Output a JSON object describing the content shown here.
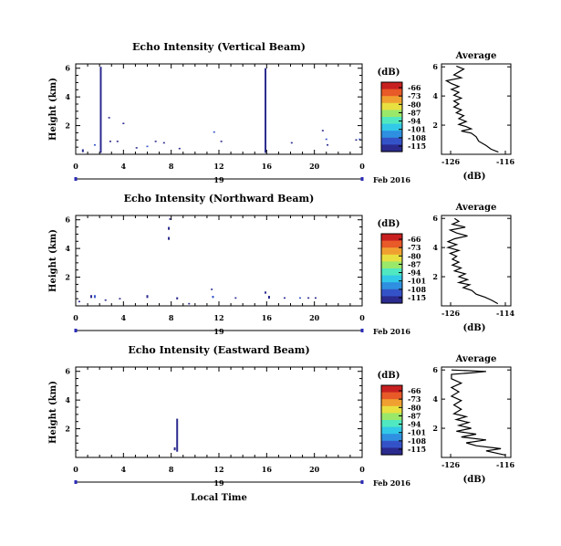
{
  "colormap": [
    "#2b2b8f",
    "#3553c8",
    "#2f8fe0",
    "#32c8e8",
    "#50e8c0",
    "#9ae86a",
    "#e8e040",
    "#f0a030",
    "#e85a28",
    "#c82020"
  ],
  "chart_data": [
    {
      "type": "heatmap",
      "title": "Echo Intensity (Vertical Beam)",
      "ylabel": "Height (km)",
      "y_ticks": [
        2,
        4,
        6
      ],
      "x_ticks": [
        "0",
        "4",
        "8",
        "12",
        "16",
        "20",
        "0"
      ],
      "xlim": [
        0,
        24
      ],
      "ylim": [
        0,
        6.3
      ],
      "date_axis": {
        "day": "19",
        "month_year": "Feb 2016"
      },
      "colorbar": {
        "unit": "(dB)",
        "ticks": [
          "-66",
          "-73",
          "-80",
          "-87",
          "-94",
          "-101",
          "-108",
          "-115"
        ],
        "range": [
          -115,
          -66
        ]
      },
      "echoes": [
        {
          "t": 2.1,
          "h0": 0.1,
          "h1": 6.1,
          "v": -112
        },
        {
          "t": 15.9,
          "h0": 0.1,
          "h1": 6.0,
          "v": -112
        },
        {
          "t": 0.6,
          "h0": 0.15,
          "h1": 0.35,
          "v": -111
        },
        {
          "t": 1.6,
          "h0": 0.6,
          "h1": 0.7,
          "v": -110
        },
        {
          "t": 2.8,
          "h0": 2.5,
          "h1": 2.6,
          "v": -112
        },
        {
          "t": 2.9,
          "h0": 0.85,
          "h1": 0.95,
          "v": -111
        },
        {
          "t": 3.5,
          "h0": 0.85,
          "h1": 0.95,
          "v": -111
        },
        {
          "t": 4.0,
          "h0": 2.1,
          "h1": 2.2,
          "v": -111
        },
        {
          "t": 5.1,
          "h0": 0.4,
          "h1": 0.5,
          "v": -112
        },
        {
          "t": 6.0,
          "h0": 0.5,
          "h1": 0.6,
          "v": -110
        },
        {
          "t": 6.7,
          "h0": 0.85,
          "h1": 0.95,
          "v": -111
        },
        {
          "t": 7.4,
          "h0": 0.75,
          "h1": 0.85,
          "v": -111
        },
        {
          "t": 8.7,
          "h0": 0.35,
          "h1": 0.45,
          "v": -112
        },
        {
          "t": 11.6,
          "h0": 1.5,
          "h1": 1.6,
          "v": -110
        },
        {
          "t": 12.2,
          "h0": 0.85,
          "h1": 0.95,
          "v": -111
        },
        {
          "t": 18.1,
          "h0": 0.75,
          "h1": 0.85,
          "v": -111
        },
        {
          "t": 20.7,
          "h0": 1.6,
          "h1": 1.7,
          "v": -111
        },
        {
          "t": 21.0,
          "h0": 1.0,
          "h1": 1.1,
          "v": -110
        },
        {
          "t": 21.1,
          "h0": 0.6,
          "h1": 0.7,
          "v": -111
        },
        {
          "t": 23.5,
          "h0": 0.95,
          "h1": 1.05,
          "v": -111
        },
        {
          "t": 23.8,
          "h0": 1.0,
          "h1": 1.1,
          "v": -110
        }
      ],
      "average": {
        "title": "Average",
        "xlabel": "(dB)",
        "x_ticks": [
          "-126",
          "-116"
        ],
        "xlim": [
          -128,
          -114
        ],
        "y_ticks": [
          2,
          4,
          6
        ],
        "ylim": [
          0,
          6.2
        ],
        "profile": [
          [
            -116.5,
            0.15
          ],
          [
            -118,
            0.35
          ],
          [
            -119,
            0.6
          ],
          [
            -120.5,
            0.9
          ],
          [
            -121,
            1.2
          ],
          [
            -122,
            1.45
          ],
          [
            -124,
            1.6
          ],
          [
            -122,
            1.75
          ],
          [
            -123,
            1.9
          ],
          [
            -124.5,
            2.05
          ],
          [
            -123,
            2.25
          ],
          [
            -124.5,
            2.45
          ],
          [
            -123.5,
            2.65
          ],
          [
            -125,
            2.85
          ],
          [
            -124,
            3.05
          ],
          [
            -125.5,
            3.25
          ],
          [
            -124.5,
            3.45
          ],
          [
            -125.5,
            3.65
          ],
          [
            -124,
            3.85
          ],
          [
            -125.5,
            4.05
          ],
          [
            -124.5,
            4.25
          ],
          [
            -126,
            4.45
          ],
          [
            -124.5,
            4.65
          ],
          [
            -126,
            4.85
          ],
          [
            -127,
            5.05
          ],
          [
            -124,
            5.25
          ],
          [
            -125.5,
            5.45
          ],
          [
            -124.5,
            5.65
          ],
          [
            -123.5,
            5.85
          ],
          [
            -125,
            6.05
          ]
        ]
      }
    },
    {
      "type": "heatmap",
      "title": "Echo Intensity (Northward Beam)",
      "ylabel": "Height (km)",
      "y_ticks": [
        2,
        4,
        6
      ],
      "x_ticks": [
        "0",
        "4",
        "8",
        "12",
        "16",
        "20",
        "0"
      ],
      "xlim": [
        0,
        24
      ],
      "ylim": [
        0,
        6.3
      ],
      "date_axis": {
        "day": "19",
        "month_year": "Feb 2016"
      },
      "colorbar": {
        "unit": "(dB)",
        "ticks": [
          "-66",
          "-73",
          "-80",
          "-87",
          "-94",
          "-101",
          "-108",
          "-115"
        ],
        "range": [
          -115,
          -66
        ]
      },
      "echoes": [
        {
          "t": 0.3,
          "h0": 0.25,
          "h1": 0.35,
          "v": -112
        },
        {
          "t": 1.3,
          "h0": 0.55,
          "h1": 0.75,
          "v": -111
        },
        {
          "t": 1.6,
          "h0": 0.55,
          "h1": 0.75,
          "v": -110
        },
        {
          "t": 2.5,
          "h0": 0.35,
          "h1": 0.45,
          "v": -112
        },
        {
          "t": 3.7,
          "h0": 0.45,
          "h1": 0.55,
          "v": -111
        },
        {
          "t": 6.0,
          "h0": 0.55,
          "h1": 0.75,
          "v": -111
        },
        {
          "t": 7.9,
          "h0": 6.0,
          "h1": 6.1,
          "v": -111
        },
        {
          "t": 7.8,
          "h0": 5.3,
          "h1": 5.5,
          "v": -112
        },
        {
          "t": 7.8,
          "h0": 4.6,
          "h1": 4.8,
          "v": -112
        },
        {
          "t": 8.5,
          "h0": 0.45,
          "h1": 0.6,
          "v": -111
        },
        {
          "t": 9.5,
          "h0": 0.1,
          "h1": 0.2,
          "v": -112
        },
        {
          "t": 11.4,
          "h0": 1.1,
          "h1": 1.2,
          "v": -111
        },
        {
          "t": 11.5,
          "h0": 0.55,
          "h1": 0.7,
          "v": -110
        },
        {
          "t": 13.4,
          "h0": 0.5,
          "h1": 0.6,
          "v": -111
        },
        {
          "t": 15.9,
          "h0": 0.85,
          "h1": 1.0,
          "v": -111
        },
        {
          "t": 16.2,
          "h0": 0.5,
          "h1": 0.7,
          "v": -112
        },
        {
          "t": 17.5,
          "h0": 0.5,
          "h1": 0.6,
          "v": -111
        },
        {
          "t": 18.8,
          "h0": 0.5,
          "h1": 0.6,
          "v": -110
        },
        {
          "t": 19.5,
          "h0": 0.5,
          "h1": 0.6,
          "v": -111
        },
        {
          "t": 20.1,
          "h0": 0.5,
          "h1": 0.6,
          "v": -112
        }
      ],
      "average": {
        "title": "Average",
        "xlabel": "(dB)",
        "x_ticks": [
          "-126",
          "-114"
        ],
        "xlim": [
          -128,
          -112
        ],
        "y_ticks": [
          2,
          4,
          6
        ],
        "ylim": [
          0,
          6.2
        ],
        "profile": [
          [
            -115,
            0.15
          ],
          [
            -116.5,
            0.4
          ],
          [
            -118,
            0.6
          ],
          [
            -120,
            0.8
          ],
          [
            -121,
            1.05
          ],
          [
            -123,
            1.25
          ],
          [
            -121.5,
            1.45
          ],
          [
            -124,
            1.6
          ],
          [
            -122,
            1.8
          ],
          [
            -124,
            2.0
          ],
          [
            -122.5,
            2.2
          ],
          [
            -125,
            2.4
          ],
          [
            -123.5,
            2.6
          ],
          [
            -125.5,
            2.8
          ],
          [
            -124,
            3.0
          ],
          [
            -125.5,
            3.2
          ],
          [
            -124.5,
            3.4
          ],
          [
            -126,
            3.6
          ],
          [
            -124,
            3.8
          ],
          [
            -126.5,
            4.0
          ],
          [
            -124.5,
            4.2
          ],
          [
            -126.5,
            4.4
          ],
          [
            -125,
            4.6
          ],
          [
            -122,
            4.8
          ],
          [
            -124.5,
            5.0
          ],
          [
            -126,
            5.2
          ],
          [
            -122.5,
            5.4
          ],
          [
            -125.5,
            5.6
          ],
          [
            -124,
            5.8
          ],
          [
            -125,
            6.0
          ]
        ]
      }
    },
    {
      "type": "heatmap",
      "title": "Echo Intensity (Eastward Beam)",
      "ylabel": "Height (km)",
      "xlabel": "Local Time",
      "y_ticks": [
        2,
        4,
        6
      ],
      "x_ticks": [
        "0",
        "4",
        "8",
        "12",
        "16",
        "20",
        "0"
      ],
      "xlim": [
        0,
        24
      ],
      "ylim": [
        0,
        6.3
      ],
      "date_axis": {
        "day": "19",
        "month_year": "Feb 2016"
      },
      "colorbar": {
        "unit": "(dB)",
        "ticks": [
          "-66",
          "-73",
          "-80",
          "-87",
          "-94",
          "-101",
          "-108",
          "-115"
        ],
        "range": [
          -115,
          -66
        ]
      },
      "echoes": [
        {
          "t": 8.5,
          "h0": 0.4,
          "h1": 2.7,
          "v": -112
        },
        {
          "t": 8.3,
          "h0": 0.5,
          "h1": 0.7,
          "v": -111
        }
      ],
      "average": {
        "title": "Average",
        "xlabel": "(dB)",
        "x_ticks": [
          "-126",
          "-116"
        ],
        "xlim": [
          -128,
          -114
        ],
        "y_ticks": [
          2,
          4,
          6
        ],
        "ylim": [
          0,
          6.2
        ],
        "profile": [
          [
            -115,
            0.15
          ],
          [
            -117,
            0.3
          ],
          [
            -119,
            0.45
          ],
          [
            -116,
            0.6
          ],
          [
            -121,
            0.8
          ],
          [
            -123,
            1.0
          ],
          [
            -119,
            1.2
          ],
          [
            -124,
            1.4
          ],
          [
            -121,
            1.6
          ],
          [
            -125,
            1.8
          ],
          [
            -122,
            2.0
          ],
          [
            -124.5,
            2.2
          ],
          [
            -122.5,
            2.4
          ],
          [
            -125,
            2.6
          ],
          [
            -123,
            2.8
          ],
          [
            -125.5,
            3.0
          ],
          [
            -124,
            3.3
          ],
          [
            -125.5,
            3.6
          ],
          [
            -124,
            3.9
          ],
          [
            -126,
            4.2
          ],
          [
            -124.5,
            4.5
          ],
          [
            -126,
            4.8
          ],
          [
            -124,
            5.1
          ],
          [
            -126,
            5.4
          ],
          [
            -126,
            5.7
          ],
          [
            -122,
            5.8
          ],
          [
            -119,
            5.9
          ],
          [
            -126,
            6.0
          ]
        ]
      }
    }
  ]
}
